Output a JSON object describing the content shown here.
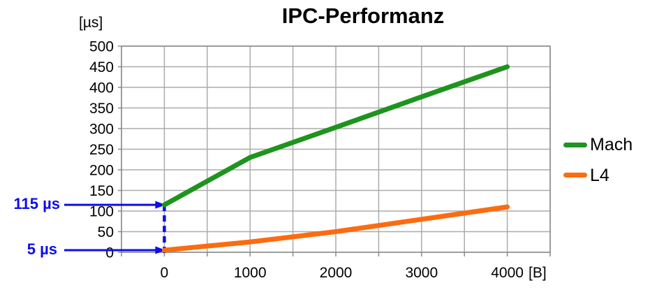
{
  "title": "IPC-Performanz",
  "y_unit_label": "[µs]",
  "x_unit_label": "[B]",
  "colors": {
    "background": "#FFFFFF",
    "grid": "#ABABAB",
    "axis": "#8A8A8A",
    "text": "#000000",
    "mach_green": "#1E941E",
    "l4_orange": "#FB6C11",
    "annotation_blue": "#0D0DEE"
  },
  "legend": {
    "position": "right",
    "items": [
      {
        "label": "Mach"
      },
      {
        "label": "L4"
      }
    ]
  },
  "chart_data": {
    "type": "line",
    "title": "IPC-Performanz",
    "xlabel": "[B]",
    "ylabel": "[µs]",
    "x": [
      0,
      1000,
      2000,
      3000,
      4000
    ],
    "series": [
      {
        "name": "Mach",
        "color": "#1E941E",
        "values": [
          115,
          230,
          303,
          377,
          450
        ]
      },
      {
        "name": "L4",
        "color": "#FB6C11",
        "values": [
          5,
          25,
          50,
          80,
          110
        ]
      }
    ],
    "xlim": [
      -500,
      4500
    ],
    "ylim": [
      0,
      500
    ],
    "x_tick_step": 1000,
    "x_grid_step": 500,
    "y_tick_step": 50,
    "y_grid_step": 50,
    "x_tick_labels": [
      "0",
      "1000",
      "2000",
      "3000",
      "4000"
    ],
    "y_tick_labels": [
      "0",
      "50",
      "100",
      "150",
      "200",
      "250",
      "300",
      "350",
      "400",
      "450",
      "500"
    ],
    "grid": true,
    "legend_position": "right",
    "annotations": [
      {
        "label": "115 µs",
        "x_value": 0,
        "y_value": 115,
        "color": "#0D0DEE"
      },
      {
        "label": "5 µs",
        "x_value": 0,
        "y_value": 5,
        "color": "#0D0DEE"
      }
    ]
  }
}
